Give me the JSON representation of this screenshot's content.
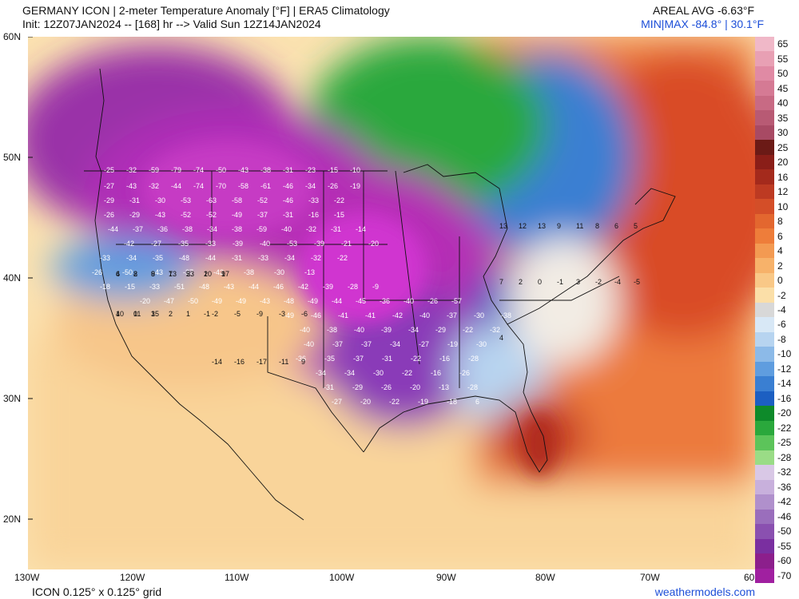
{
  "header": {
    "line1": "GERMANY ICON | 2-meter Temperature Anomaly [°F] | ERA5 Climatology",
    "line2": "Init: 12Z07JAN2024 -- [168] hr --> Valid Sun 12Z14JAN2024",
    "areal_avg": "AREAL AVG -6.63°F",
    "minmax": "MIN|MAX -84.8° | 30.1°F"
  },
  "map": {
    "lat_labels": [
      "60N",
      "50N",
      "40N",
      "30N",
      "20N"
    ],
    "lon_labels": [
      "130W",
      "120W",
      "110W",
      "100W",
      "90W",
      "80W",
      "70W",
      "60"
    ],
    "point_labels": [
      {
        "t": "-25"
      },
      {
        "t": "-32"
      },
      {
        "t": "-59"
      },
      {
        "t": "-79"
      },
      {
        "t": "-74"
      },
      {
        "t": "-50"
      },
      {
        "t": "-43"
      },
      {
        "t": "-38"
      },
      {
        "t": "-31"
      },
      {
        "t": "-23"
      },
      {
        "t": "-15"
      },
      {
        "t": "-10"
      },
      {
        "t": "-27"
      },
      {
        "t": "-43"
      },
      {
        "t": "-32"
      },
      {
        "t": "-44"
      },
      {
        "t": "-74"
      },
      {
        "t": "-70"
      },
      {
        "t": "-58"
      },
      {
        "t": "-61"
      },
      {
        "t": "-46"
      },
      {
        "t": "-34"
      },
      {
        "t": "-26"
      },
      {
        "t": "-19"
      },
      {
        "t": "-29"
      },
      {
        "t": "-31"
      },
      {
        "t": "-30"
      },
      {
        "t": "-53"
      },
      {
        "t": "-63"
      },
      {
        "t": "-58"
      },
      {
        "t": "-52"
      },
      {
        "t": "-46"
      },
      {
        "t": "-33"
      },
      {
        "t": "-22"
      },
      {
        "t": "-26"
      },
      {
        "t": "-29"
      },
      {
        "t": "-43"
      },
      {
        "t": "-52"
      },
      {
        "t": "-52"
      },
      {
        "t": "-49"
      },
      {
        "t": "-37"
      },
      {
        "t": "-31"
      },
      {
        "t": "-16"
      },
      {
        "t": "-15"
      },
      {
        "t": "-44"
      },
      {
        "t": "-37"
      },
      {
        "t": "-36"
      },
      {
        "t": "-38"
      },
      {
        "t": "-34"
      },
      {
        "t": "-38"
      },
      {
        "t": "-59"
      },
      {
        "t": "-40"
      },
      {
        "t": "-32"
      },
      {
        "t": "-31"
      },
      {
        "t": "-14"
      },
      {
        "t": "-42"
      },
      {
        "t": "-27"
      },
      {
        "t": "-35"
      },
      {
        "t": "-33"
      },
      {
        "t": "-39"
      },
      {
        "t": "-40"
      },
      {
        "t": "-53"
      },
      {
        "t": "-39"
      },
      {
        "t": "-21"
      },
      {
        "t": "-20"
      },
      {
        "t": "-33"
      },
      {
        "t": "-34"
      },
      {
        "t": "-35"
      },
      {
        "t": "-48"
      },
      {
        "t": "-44"
      },
      {
        "t": "-31"
      },
      {
        "t": "-33"
      },
      {
        "t": "-34"
      },
      {
        "t": "-32"
      },
      {
        "t": "-22"
      },
      {
        "t": "-26"
      },
      {
        "t": "-50"
      },
      {
        "t": "-43"
      },
      {
        "t": "-37"
      },
      {
        "t": "-42"
      },
      {
        "t": "-38"
      },
      {
        "t": "-30"
      },
      {
        "t": "-13"
      },
      {
        "t": "-18"
      },
      {
        "t": "-15"
      },
      {
        "t": "-33"
      },
      {
        "t": "-51"
      },
      {
        "t": "-48"
      },
      {
        "t": "-43"
      },
      {
        "t": "-44"
      },
      {
        "t": "-46"
      },
      {
        "t": "-42"
      },
      {
        "t": "-39"
      },
      {
        "t": "-28"
      },
      {
        "t": "-9"
      },
      {
        "t": "-20"
      },
      {
        "t": "-47"
      },
      {
        "t": "-50"
      },
      {
        "t": "-49"
      },
      {
        "t": "-49"
      },
      {
        "t": "-43"
      },
      {
        "t": "-48"
      },
      {
        "t": "-49"
      },
      {
        "t": "-44"
      },
      {
        "t": "-45"
      },
      {
        "t": "-36"
      },
      {
        "t": "-40"
      },
      {
        "t": "-26"
      },
      {
        "t": "-57"
      },
      {
        "t": "-49"
      },
      {
        "t": "-46"
      },
      {
        "t": "-41"
      },
      {
        "t": "-41"
      },
      {
        "t": "-42"
      },
      {
        "t": "-40"
      },
      {
        "t": "-37"
      },
      {
        "t": "-30"
      },
      {
        "t": "-38"
      },
      {
        "t": "-40"
      },
      {
        "t": "-38"
      },
      {
        "t": "-40"
      },
      {
        "t": "-39"
      },
      {
        "t": "-34"
      },
      {
        "t": "-29"
      },
      {
        "t": "-22"
      },
      {
        "t": "-32"
      },
      {
        "t": "-40"
      },
      {
        "t": "-37"
      },
      {
        "t": "-37"
      },
      {
        "t": "-34"
      },
      {
        "t": "-27"
      },
      {
        "t": "-19"
      },
      {
        "t": "-30"
      },
      {
        "t": "-36"
      },
      {
        "t": "-35"
      },
      {
        "t": "-37"
      },
      {
        "t": "-31"
      },
      {
        "t": "-22"
      },
      {
        "t": "-16"
      },
      {
        "t": "-28"
      },
      {
        "t": "-34"
      },
      {
        "t": "-34"
      },
      {
        "t": "-30"
      },
      {
        "t": "-22"
      },
      {
        "t": "-16"
      },
      {
        "t": "-26"
      },
      {
        "t": "-31"
      },
      {
        "t": "-29"
      },
      {
        "t": "-26"
      },
      {
        "t": "-20"
      },
      {
        "t": "-13"
      },
      {
        "t": "-28"
      },
      {
        "t": "-27"
      },
      {
        "t": "-20"
      },
      {
        "t": "-22"
      },
      {
        "t": "-19"
      },
      {
        "t": "-18"
      },
      {
        "t": "6"
      },
      {
        "t": "4"
      },
      {
        "t": "2"
      },
      {
        "t": "8"
      },
      {
        "t": "7"
      },
      {
        "t": "5"
      },
      {
        "t": "1"
      },
      {
        "t": "9"
      },
      {
        "t": "4"
      },
      {
        "t": "0"
      },
      {
        "t": "3"
      },
      {
        "t": "2"
      },
      {
        "t": "1"
      },
      {
        "t": "-1"
      },
      {
        "t": "-2"
      },
      {
        "t": "-5"
      },
      {
        "t": "-9"
      },
      {
        "t": "-3"
      },
      {
        "t": "-6"
      },
      {
        "t": "-14"
      },
      {
        "t": "-16"
      },
      {
        "t": "-17"
      },
      {
        "t": "-11"
      },
      {
        "t": "9"
      },
      {
        "t": "13"
      },
      {
        "t": "12"
      },
      {
        "t": "13"
      },
      {
        "t": "9"
      },
      {
        "t": "11"
      },
      {
        "t": "8"
      },
      {
        "t": "6"
      },
      {
        "t": "5"
      },
      {
        "t": "7"
      },
      {
        "t": "2"
      },
      {
        "t": "0"
      },
      {
        "t": "-1"
      },
      {
        "t": "3"
      },
      {
        "t": "-2"
      },
      {
        "t": "-4"
      },
      {
        "t": "-5"
      },
      {
        "t": "4"
      },
      {
        "t": "6"
      },
      {
        "t": "8"
      },
      {
        "t": "9"
      },
      {
        "t": "13"
      },
      {
        "t": "23"
      },
      {
        "t": "20"
      },
      {
        "t": "17"
      },
      {
        "t": "10"
      },
      {
        "t": "11"
      },
      {
        "t": "15"
      }
    ]
  },
  "colorbar": {
    "labels": [
      "65",
      "55",
      "50",
      "45",
      "40",
      "35",
      "30",
      "25",
      "20",
      "16",
      "12",
      "10",
      "8",
      "6",
      "4",
      "2",
      "0",
      "-2",
      "-4",
      "-6",
      "-8",
      "-10",
      "-12",
      "-14",
      "-16",
      "-20",
      "-22",
      "-25",
      "-28",
      "-32",
      "-36",
      "-42",
      "-46",
      "-50",
      "-55",
      "-60",
      "-70"
    ],
    "colors": [
      "#f0b8c8",
      "#e8a0b4",
      "#e08aa4",
      "#d57a94",
      "#c86a84",
      "#b85a74",
      "#a84a64",
      "#6b1a16",
      "#8a1e18",
      "#a42a1c",
      "#bd3a22",
      "#d44e28",
      "#e3672f",
      "#ee7d3a",
      "#f39a52",
      "#f7b26a",
      "#f9c887",
      "#fbdfa8",
      "#d8d8d8",
      "#d8e8f6",
      "#b7d4f0",
      "#8cbae8",
      "#5f9ddf",
      "#3a7fd2",
      "#1c5fc2",
      "#0e8a2a",
      "#2aa83c",
      "#5cc45a",
      "#9adc86",
      "#d9c8e6",
      "#c8b0dc",
      "#b090cc",
      "#9a6ebc",
      "#8a50b0",
      "#7a2fa0",
      "#8c1f8c",
      "#a020a0"
    ]
  },
  "footer": {
    "left": "ICON 0.125° x 0.125° grid",
    "right": "weathermodels.com"
  }
}
